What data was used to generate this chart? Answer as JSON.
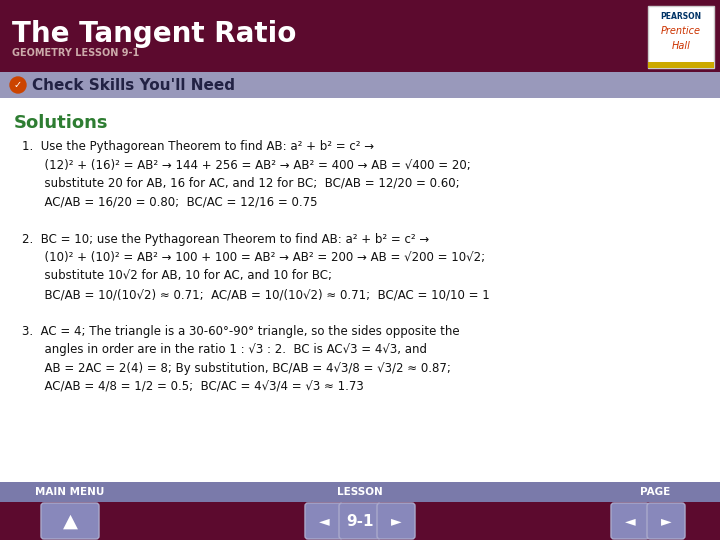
{
  "title": "The Tangent Ratio",
  "subtitle": "GEOMETRY LESSON 9-1",
  "header_bg": "#5c0a2e",
  "header_text_color": "#ffffff",
  "subheader_bg": "#9999bb",
  "subheader_text": "Check Skills You'll Need",
  "subheader_text_color": "#222244",
  "solutions_color": "#2e7d32",
  "body_bg": "#ffffff",
  "footer_bg": "#5c0a2e",
  "footer_text_color": "#ffffff",
  "page_label": "9-1",
  "body_lines": [
    "1.  Use the Pythagorean Theorem to find AB: a² + b² = c² →",
    "      (12)² + (16)² = AB² → 144 + 256 = AB² → AB² = 400 → AB = √400 = 20;",
    "      substitute 20 for AB, 16 for AC, and 12 for BC;  BC/AB = 12/20 = 0.60;",
    "      AC/AB = 16/20 = 0.80;  BC/AC = 12/16 = 0.75",
    "",
    "2.  BC = 10; use the Pythagorean Theorem to find AB: a² + b² = c² →",
    "      (10)² + (10)² = AB² → 100 + 100 = AB² → AB² = 200 → AB = √200 = 10√2;",
    "      substitute 10√2 for AB, 10 for AC, and 10 for BC;",
    "      BC/AB = 10/(10√2) ≈ 0.71;  AC/AB = 10/(10√2) ≈ 0.71;  BC/AC = 10/10 = 1",
    "",
    "3.  AC = 4; The triangle is a 30-60°-90° triangle, so the sides opposite the",
    "      angles in order are in the ratio 1 : √3 : 2.  BC is AC√3 = 4√3, and",
    "      AB = 2AC = 2(4) = 8; By substitution, BC/AB = 4√3/8 = √3/2 ≈ 0.87;",
    "      AC/AB = 4/8 = 1/2 = 0.5;  BC/AC = 4√3/4 = √3 ≈ 1.73"
  ]
}
